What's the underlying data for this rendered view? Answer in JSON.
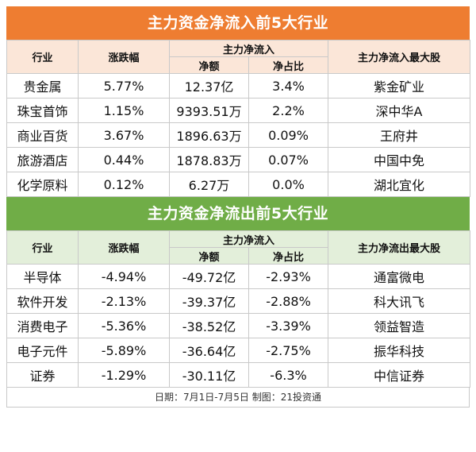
{
  "inflow": {
    "title": "主力资金净流入前5大行业",
    "headers": {
      "industry": "行业",
      "change": "涨跌幅",
      "main_net": "主力净流入",
      "net_amount": "净额",
      "net_ratio": "净占比",
      "top_stock": "主力净流入最大股"
    },
    "rows": [
      {
        "industry": "贵金属",
        "change": "5.77%",
        "net_amount": "12.37亿",
        "net_ratio": "3.4%",
        "top_stock": "紫金矿业"
      },
      {
        "industry": "珠宝首饰",
        "change": "1.15%",
        "net_amount": "9393.51万",
        "net_ratio": "2.2%",
        "top_stock": "深中华A"
      },
      {
        "industry": "商业百货",
        "change": "3.67%",
        "net_amount": "1896.63万",
        "net_ratio": "0.09%",
        "top_stock": "王府井"
      },
      {
        "industry": "旅游酒店",
        "change": "0.44%",
        "net_amount": "1878.83万",
        "net_ratio": "0.07%",
        "top_stock": "中国中免"
      },
      {
        "industry": "化学原料",
        "change": "0.12%",
        "net_amount": "6.27万",
        "net_ratio": "0.0%",
        "top_stock": "湖北宜化"
      }
    ]
  },
  "outflow": {
    "title": "主力资金净流出前5大行业",
    "headers": {
      "industry": "行业",
      "change": "涨跌幅",
      "main_net": "主力净流入",
      "net_amount": "净额",
      "net_ratio": "净占比",
      "top_stock": "主力净流出最大股"
    },
    "rows": [
      {
        "industry": "半导体",
        "change": "-4.94%",
        "net_amount": "-49.72亿",
        "net_ratio": "-2.93%",
        "top_stock": "通富微电"
      },
      {
        "industry": "软件开发",
        "change": "-2.13%",
        "net_amount": "-39.37亿",
        "net_ratio": "-2.88%",
        "top_stock": "科大讯飞"
      },
      {
        "industry": "消费电子",
        "change": "-5.36%",
        "net_amount": "-38.52亿",
        "net_ratio": "-3.39%",
        "top_stock": "领益智造"
      },
      {
        "industry": "电子元件",
        "change": "-5.89%",
        "net_amount": "-36.64亿",
        "net_ratio": "-2.75%",
        "top_stock": "振华科技"
      },
      {
        "industry": "证券",
        "change": "-1.29%",
        "net_amount": "-30.11亿",
        "net_ratio": "-6.3%",
        "top_stock": "中信证券"
      }
    ]
  },
  "footer": "日期：7月1日-7月5日 制图：21投资通",
  "colors": {
    "inflow_accent": "#ee7d31",
    "outflow_accent": "#70ad47"
  }
}
